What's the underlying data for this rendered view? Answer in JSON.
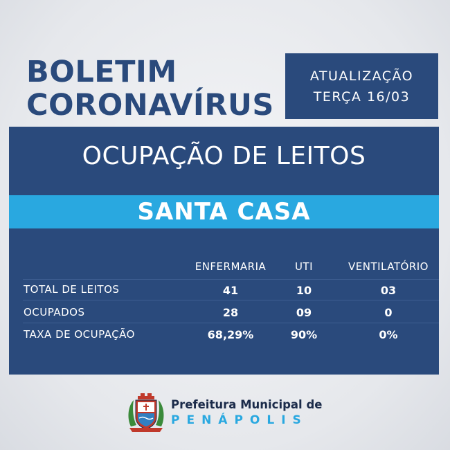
{
  "header": {
    "title_line1": "BOLETIM",
    "title_line2": "CORONAVÍRUS",
    "update_label": "ATUALIZAÇÃO",
    "update_date": "TERÇA 16/03"
  },
  "panel": {
    "heading": "OCUPAÇÃO DE LEITOS",
    "hospital": "SANTA CASA"
  },
  "table": {
    "columns": [
      "ENFERMARIA",
      "UTI",
      "VENTILATÓRIO"
    ],
    "rows": [
      {
        "label": "TOTAL DE LEITOS",
        "values": [
          "41",
          "10",
          "03"
        ]
      },
      {
        "label": "OCUPADOS",
        "values": [
          "28",
          "09",
          "0"
        ]
      },
      {
        "label": "TAXA DE OCUPAÇÃO",
        "values": [
          "68,29%",
          "90%",
          "0%"
        ]
      }
    ]
  },
  "footer": {
    "org_line1": "Prefeitura Municipal de",
    "org_line2": "PENÁPOLIS"
  },
  "colors": {
    "navy": "#2a4a7c",
    "cyan": "#29a8e0",
    "background": "#e6e8ec"
  }
}
